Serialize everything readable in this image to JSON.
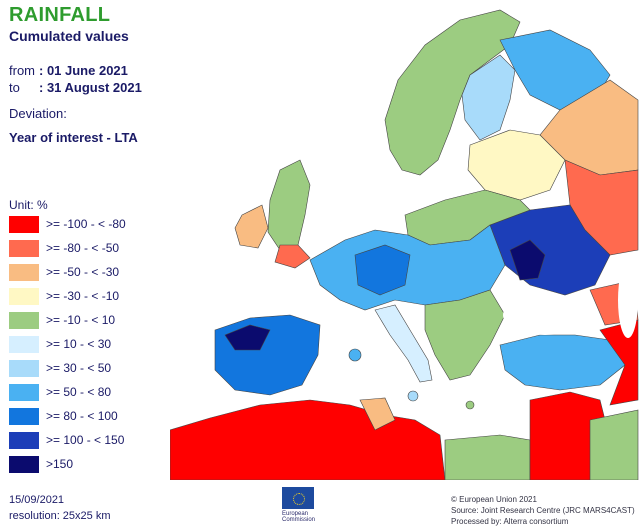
{
  "header": {
    "title": "RAINFALL",
    "subtitle": "Cumulated values",
    "from_label": "from",
    "from_value": ": 01 June 2021",
    "to_label": "to",
    "to_value": ": 31 August 2021",
    "deviation_label": "Deviation:",
    "deviation_value": "Year of interest - LTA"
  },
  "legend": {
    "unit_label": "Unit:  %",
    "classes": [
      {
        "label": ">= -100 - < -80",
        "color": "#ff0000"
      },
      {
        "label": ">= -80 - < -50",
        "color": "#ff6a4f"
      },
      {
        "label": ">= -50 - < -30",
        "color": "#f9bc82"
      },
      {
        "label": ">= -30 - < -10",
        "color": "#fff8c4"
      },
      {
        "label": ">= -10 - < 10",
        "color": "#9ccc81"
      },
      {
        "label": ">= 10 - < 30",
        "color": "#d6efff"
      },
      {
        "label": ">= 30 - < 50",
        "color": "#a8dbfa"
      },
      {
        "label": ">= 50 - < 80",
        "color": "#4ab1f2"
      },
      {
        "label": ">= 80 - < 100",
        "color": "#1276de"
      },
      {
        "label": ">= 100 - < 150",
        "color": "#1c3eb8"
      },
      {
        "label": ">150",
        "color": "#0b0b6e"
      }
    ]
  },
  "footer": {
    "date": "15/09/2021",
    "resolution": "resolution:  25x25 km",
    "eu_text_1": "European",
    "eu_text_2": "Commission",
    "credit_1": "© European Union 2021",
    "credit_2": "Source: Joint Research Centre (JRC MARS4CAST)",
    "credit_3": "Processed by: Alterra consortium"
  },
  "map_colors": {
    "sea": "#ffffff",
    "border": "#444444"
  }
}
